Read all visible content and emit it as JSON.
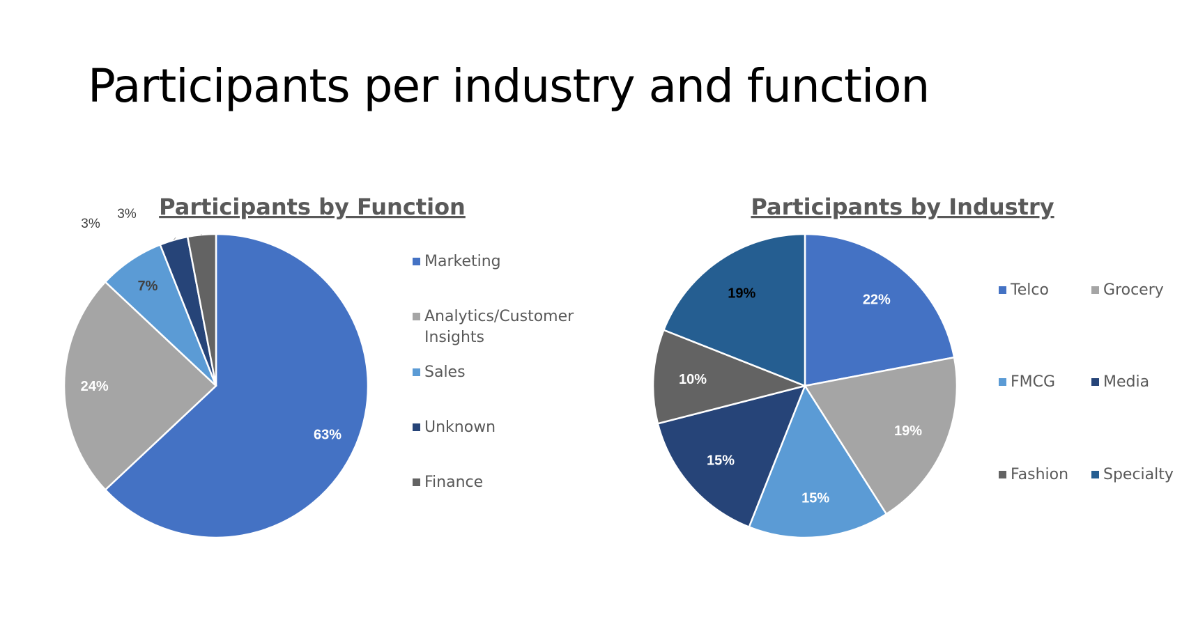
{
  "page": {
    "title": "Participants per industry and function"
  },
  "chart_data": [
    {
      "type": "pie",
      "title": "Participants by Function",
      "categories": [
        "Marketing",
        "Analytics/Customer Insights",
        "Sales",
        "Unknown",
        "Finance"
      ],
      "legend_lines": [
        [
          "Marketing"
        ],
        [
          "Analytics/Customer",
          "Insights"
        ],
        [
          "Sales"
        ],
        [
          "Unknown"
        ],
        [
          "Finance"
        ]
      ],
      "values": [
        63,
        24,
        7,
        3,
        3
      ],
      "data_labels": [
        "63%",
        "24%",
        "7%",
        "3%",
        "3%"
      ],
      "colors": [
        "#4472C4",
        "#A5A5A5",
        "#5B9BD5",
        "#264478",
        "#636363"
      ],
      "label_colors": [
        "#ffffff",
        "#ffffff",
        "#404040",
        "#404040",
        "#404040"
      ],
      "legend_position": "right",
      "start_angle_deg": 0,
      "direction": "clockwise"
    },
    {
      "type": "pie",
      "title": "Participants by Industry",
      "categories": [
        "Telco",
        "Grocery",
        "FMCG",
        "Media",
        "Fashion",
        "Specialty"
      ],
      "values": [
        22,
        19,
        15,
        15,
        10,
        19
      ],
      "data_labels": [
        "22%",
        "19%",
        "15%",
        "15%",
        "10%",
        "19%"
      ],
      "colors": [
        "#4472C4",
        "#A5A5A5",
        "#5B9BD5",
        "#264478",
        "#636363",
        "#255E91"
      ],
      "label_colors": [
        "#ffffff",
        "#ffffff",
        "#ffffff",
        "#ffffff",
        "#ffffff",
        "#000000"
      ],
      "legend_position": "right",
      "start_angle_deg": 0,
      "direction": "clockwise"
    }
  ]
}
